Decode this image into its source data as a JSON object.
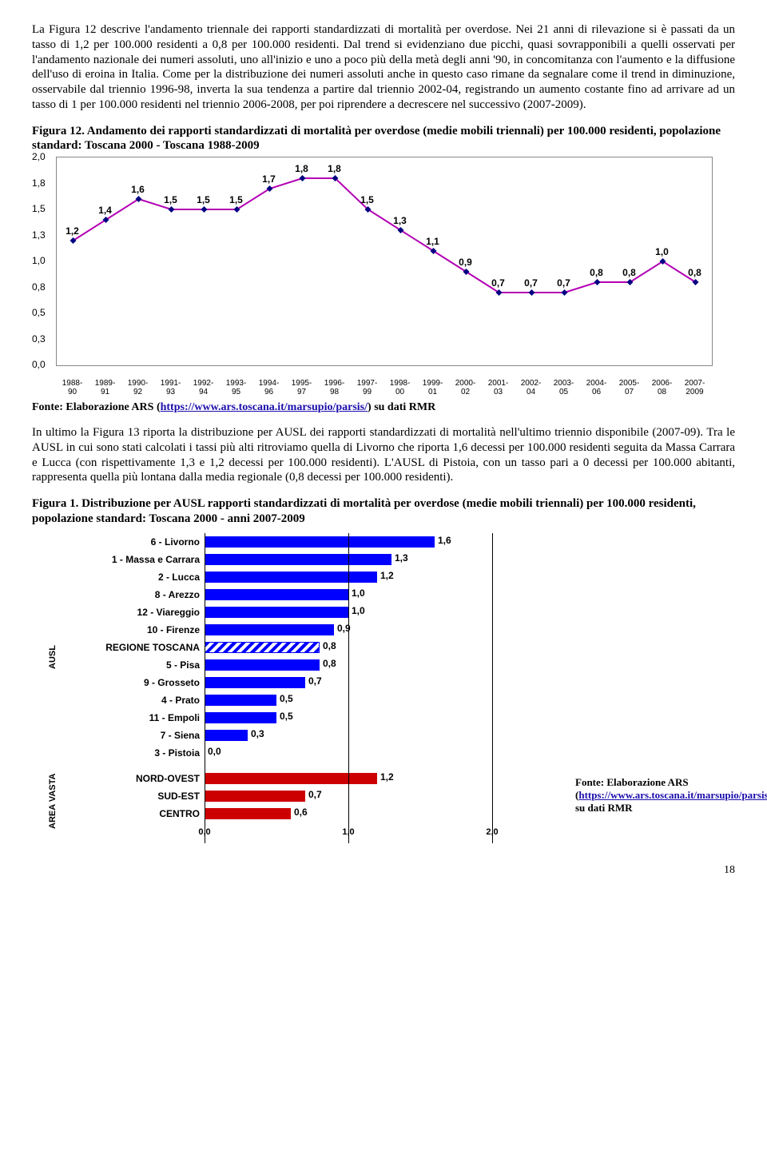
{
  "para1": "La Figura 12 descrive l'andamento triennale dei rapporti standardizzati di mortalità per overdose. Nei 21 anni di rilevazione si è passati da un tasso di 1,2 per 100.000 residenti a 0,8 per 100.000 residenti. Dal trend si evidenziano due picchi, quasi sovrapponibili a quelli osservati per l'andamento nazionale dei numeri assoluti, uno all'inizio e uno a poco più della metà degli anni '90, in concomitanza con l'aumento e la diffusione dell'uso di eroina in Italia. Come per la distribuzione dei numeri assoluti anche in questo caso rimane da segnalare come il trend in diminuzione, osservabile dal triennio 1996-98, inverta la sua tendenza a partire dal triennio 2002-04, registrando un aumento costante fino ad arrivare ad un tasso di 1 per 100.000 residenti nel triennio 2006-2008, per poi riprendere a decrescere nel successivo (2007-2009).",
  "fig12_title": "Figura 12. Andamento dei rapporti standardizzati di mortalità per overdose (medie mobili triennali) per 100.000 residenti, popolazione standard: Toscana 2000 - Toscana 1988-2009",
  "line_chart": {
    "ymin": 0.0,
    "ymax": 2.0,
    "ystep": 0.25,
    "ylabels": [
      "0,0",
      "0,3",
      "0,5",
      "0,8",
      "1,0",
      "1,3",
      "1,5",
      "1,8",
      "2,0"
    ],
    "categories": [
      "1988-90",
      "1989-91",
      "1990-92",
      "1991-93",
      "1992-94",
      "1993-95",
      "1994-96",
      "1995-97",
      "1996-98",
      "1997-99",
      "1998-00",
      "1999-01",
      "2000-02",
      "2001-03",
      "2002-04",
      "2003-05",
      "2004-06",
      "2005-07",
      "2006-08",
      "2007-2009"
    ],
    "values": [
      1.2,
      1.4,
      1.6,
      1.5,
      1.5,
      1.5,
      1.7,
      1.8,
      1.8,
      1.5,
      1.3,
      1.1,
      0.9,
      0.7,
      0.7,
      0.7,
      0.8,
      0.8,
      1.0,
      0.8
    ],
    "line_color": "#b300b3",
    "marker_color": "#000080"
  },
  "source_text_prefix": "Fonte: Elaborazione ARS (",
  "source_link_text": "https://www.ars.toscana.it/marsupio/parsis/",
  "source_text_suffix": ") su dati RMR",
  "para2": "In ultimo la Figura 13 riporta la distribuzione per AUSL dei rapporti standardizzati di mortalità nell'ultimo triennio disponibile (2007-09). Tra le AUSL in cui sono stati calcolati i tassi più alti ritroviamo quella di Livorno che riporta 1,6 decessi per 100.000 residenti seguita da Massa Carrara e Lucca (con rispettivamente 1,3 e 1,2 decessi per 100.000 residenti). L'AUSL di Pistoia, con un tasso pari a 0 decessi per 100.000 abitanti, rappresenta quella più lontana dalla media regionale (0,8 decessi per 100.000 residenti).",
  "fig1_title": "Figura 1. Distribuzione per AUSL rapporti standardizzati di mortalità per overdose (medie mobili triennali) per 100.000 residenti, popolazione standard: Toscana 2000 - anni 2007-2009",
  "bar_chart": {
    "xmax": 2.0,
    "xticks": [
      0.0,
      1.0,
      2.0
    ],
    "xtick_labels": [
      "0,0",
      "1,0",
      "2,0"
    ],
    "group1_label": "AUSL",
    "group2_label": "AREA VASTA",
    "ausl": [
      {
        "label": "6 - Livorno",
        "value": 1.6,
        "txt": "1,6",
        "style": "solid"
      },
      {
        "label": "1 - Massa e Carrara",
        "value": 1.3,
        "txt": "1,3",
        "style": "solid"
      },
      {
        "label": "2 - Lucca",
        "value": 1.2,
        "txt": "1,2",
        "style": "solid"
      },
      {
        "label": "8 - Arezzo",
        "value": 1.0,
        "txt": "1,0",
        "style": "solid"
      },
      {
        "label": "12 - Viareggio",
        "value": 1.0,
        "txt": "1,0",
        "style": "solid"
      },
      {
        "label": "10 - Firenze",
        "value": 0.9,
        "txt": "0,9",
        "style": "solid"
      },
      {
        "label": "REGIONE TOSCANA",
        "value": 0.8,
        "txt": "0,8",
        "style": "hatched"
      },
      {
        "label": "5 - Pisa",
        "value": 0.8,
        "txt": "0,8",
        "style": "solid"
      },
      {
        "label": "9 - Grosseto",
        "value": 0.7,
        "txt": "0,7",
        "style": "solid"
      },
      {
        "label": "4 - Prato",
        "value": 0.5,
        "txt": "0,5",
        "style": "solid"
      },
      {
        "label": "11 - Empoli",
        "value": 0.5,
        "txt": "0,5",
        "style": "solid"
      },
      {
        "label": "7 - Siena",
        "value": 0.3,
        "txt": "0,3",
        "style": "solid"
      },
      {
        "label": "3 - Pistoia",
        "value": 0.0,
        "txt": "0,0",
        "style": "solid"
      }
    ],
    "area": [
      {
        "label": "NORD-OVEST",
        "value": 1.2,
        "txt": "1,2"
      },
      {
        "label": "SUD-EST",
        "value": 0.7,
        "txt": "0,7"
      },
      {
        "label": "CENTRO",
        "value": 0.6,
        "txt": "0,6"
      }
    ]
  },
  "source2_prefix": "Fonte: ",
  "source2_mid": "Elaborazione ARS (",
  "source2_link": "https://www.ars.toscana.it/marsupio/parsis/",
  "source2_suffix": ") su dati RMR",
  "page_number": "18"
}
